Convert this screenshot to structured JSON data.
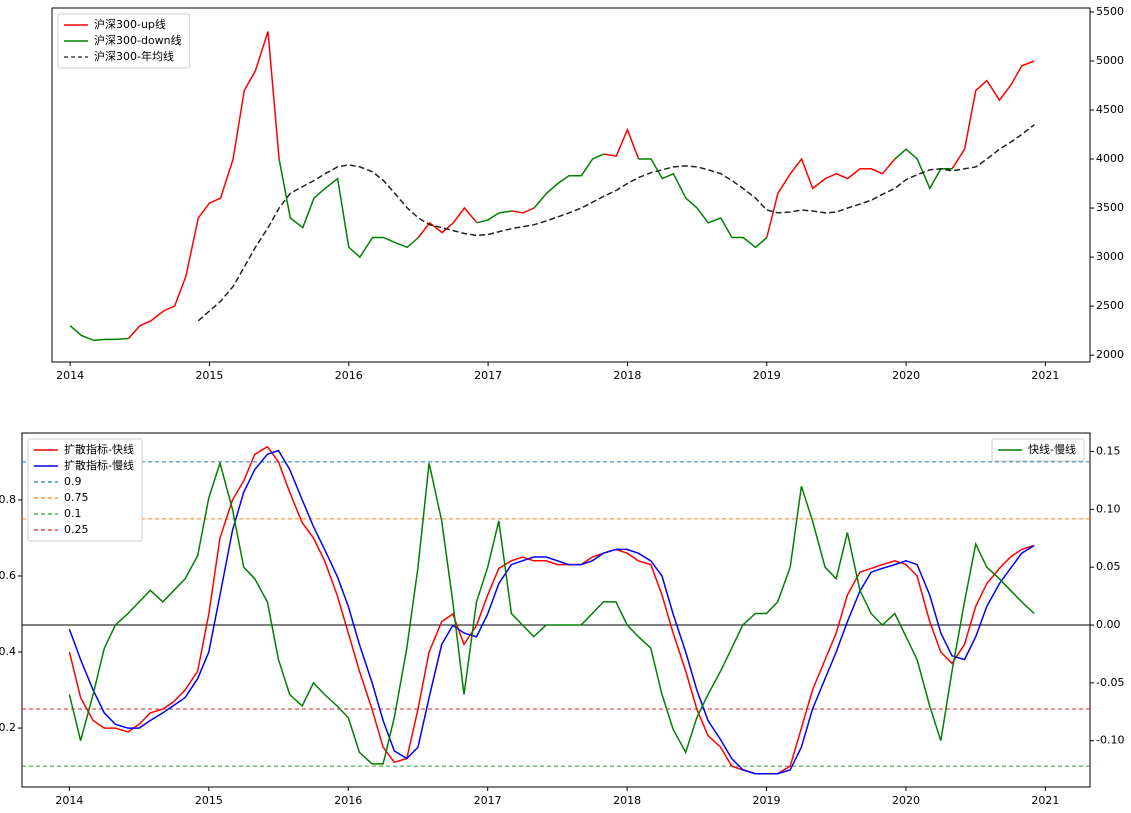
{
  "chart_data": [
    {
      "type": "line",
      "x": [
        2014,
        2014.08,
        2014.17,
        2014.25,
        2014.33,
        2014.42,
        2014.5,
        2014.58,
        2014.67,
        2014.75,
        2014.83,
        2014.92,
        2015,
        2015.08,
        2015.17,
        2015.25,
        2015.33,
        2015.42,
        2015.5,
        2015.58,
        2015.67,
        2015.75,
        2015.83,
        2015.92,
        2016,
        2016.08,
        2016.17,
        2016.25,
        2016.33,
        2016.42,
        2016.5,
        2016.58,
        2016.67,
        2016.75,
        2016.83,
        2016.92,
        2017,
        2017.08,
        2017.17,
        2017.25,
        2017.33,
        2017.42,
        2017.5,
        2017.58,
        2017.67,
        2017.75,
        2017.83,
        2017.92,
        2018,
        2018.08,
        2018.17,
        2018.25,
        2018.33,
        2018.42,
        2018.5,
        2018.58,
        2018.67,
        2018.75,
        2018.83,
        2018.92,
        2019,
        2019.08,
        2019.17,
        2019.25,
        2019.33,
        2019.42,
        2019.5,
        2019.58,
        2019.67,
        2019.75,
        2019.83,
        2019.92,
        2020,
        2020.08,
        2020.17,
        2020.25,
        2020.33,
        2020.42,
        2020.5,
        2020.58,
        2020.67,
        2020.75,
        2020.83,
        2020.92
      ],
      "series": [
        {
          "name": "沪深300-up线",
          "color": "#ff0000",
          "dash": false,
          "values": [
            null,
            null,
            null,
            null,
            null,
            2170,
            2300,
            2350,
            2450,
            2500,
            2800,
            3400,
            3550,
            3600,
            4000,
            4700,
            4900,
            5300,
            4000,
            null,
            null,
            null,
            null,
            null,
            null,
            null,
            null,
            null,
            null,
            null,
            3200,
            3350,
            3250,
            3350,
            3500,
            3350,
            null,
            null,
            3470,
            3450,
            3500,
            null,
            null,
            null,
            null,
            null,
            4050,
            4030,
            4300,
            4000,
            null,
            null,
            null,
            null,
            null,
            null,
            null,
            null,
            null,
            null,
            3200,
            3650,
            3850,
            4000,
            3700,
            3800,
            3850,
            3800,
            3900,
            3900,
            3850,
            4000,
            null,
            null,
            null,
            null,
            3900,
            4100,
            4700,
            4800,
            4600,
            4750,
            4950,
            5000
          ]
        },
        {
          "name": "沪深300-down线",
          "color": "#008000",
          "dash": false,
          "values": [
            2300,
            2200,
            2150,
            2160,
            2160,
            2170,
            null,
            null,
            null,
            null,
            null,
            null,
            null,
            null,
            null,
            null,
            null,
            null,
            4000,
            3400,
            3300,
            3600,
            3700,
            3800,
            3100,
            3000,
            3200,
            3200,
            3150,
            3100,
            3200,
            null,
            null,
            null,
            null,
            3350,
            3380,
            3450,
            3470,
            null,
            3500,
            3650,
            3750,
            3830,
            3830,
            4000,
            4050,
            null,
            null,
            4000,
            4000,
            3800,
            3850,
            3600,
            3500,
            3350,
            3400,
            3200,
            3200,
            3100,
            3200,
            null,
            null,
            null,
            null,
            null,
            null,
            null,
            null,
            null,
            null,
            4000,
            4100,
            4000,
            3700,
            3900,
            3900,
            null,
            null,
            null,
            null,
            null,
            null,
            null
          ]
        },
        {
          "name": "沪深300-年均线",
          "color": "#222222",
          "dash": true,
          "values": [
            null,
            null,
            null,
            null,
            null,
            null,
            null,
            null,
            null,
            null,
            null,
            2350,
            2450,
            2550,
            2700,
            2900,
            3100,
            3300,
            3500,
            3650,
            3720,
            3780,
            3850,
            3920,
            3940,
            3920,
            3870,
            3780,
            3650,
            3500,
            3400,
            3330,
            3300,
            3270,
            3240,
            3220,
            3230,
            3260,
            3290,
            3310,
            3330,
            3370,
            3410,
            3450,
            3500,
            3560,
            3620,
            3680,
            3750,
            3810,
            3860,
            3890,
            3920,
            3930,
            3920,
            3890,
            3850,
            3780,
            3700,
            3600,
            3480,
            3450,
            3460,
            3480,
            3470,
            3450,
            3460,
            3500,
            3540,
            3580,
            3640,
            3700,
            3790,
            3840,
            3890,
            3900,
            3880,
            3900,
            3920,
            4000,
            4100,
            4170,
            4250,
            4350
          ]
        }
      ],
      "xlim": [
        2013.87,
        2021.32
      ],
      "xticks": [
        2014,
        2015,
        2016,
        2017,
        2018,
        2019,
        2020,
        2021
      ],
      "ylim": [
        1930,
        5540
      ],
      "yticks": [
        2000,
        2500,
        3000,
        3500,
        4000,
        4500,
        5000,
        5500
      ],
      "y_axis_side": "right",
      "legend": "upper left"
    },
    {
      "type": "line",
      "x": [
        2014,
        2014.08,
        2014.17,
        2014.25,
        2014.33,
        2014.42,
        2014.5,
        2014.58,
        2014.67,
        2014.75,
        2014.83,
        2014.92,
        2015,
        2015.08,
        2015.17,
        2015.25,
        2015.33,
        2015.42,
        2015.5,
        2015.58,
        2015.67,
        2015.75,
        2015.83,
        2015.92,
        2016,
        2016.08,
        2016.17,
        2016.25,
        2016.33,
        2016.42,
        2016.5,
        2016.58,
        2016.67,
        2016.75,
        2016.83,
        2016.92,
        2017,
        2017.08,
        2017.17,
        2017.25,
        2017.33,
        2017.42,
        2017.5,
        2017.58,
        2017.67,
        2017.75,
        2017.83,
        2017.92,
        2018,
        2018.08,
        2018.17,
        2018.25,
        2018.33,
        2018.42,
        2018.5,
        2018.58,
        2018.67,
        2018.75,
        2018.83,
        2018.92,
        2019,
        2019.08,
        2019.17,
        2019.25,
        2019.33,
        2019.42,
        2019.5,
        2019.58,
        2019.67,
        2019.75,
        2019.83,
        2019.92,
        2020,
        2020.08,
        2020.17,
        2020.25,
        2020.33,
        2020.42,
        2020.5,
        2020.58,
        2020.67,
        2020.75,
        2020.83,
        2020.92
      ],
      "series": [
        {
          "name": "扩散指标-快线",
          "color": "#ff0000",
          "dash": false,
          "values": [
            0.4,
            0.28,
            0.22,
            0.2,
            0.2,
            0.19,
            0.21,
            0.24,
            0.25,
            0.27,
            0.3,
            0.35,
            0.5,
            0.7,
            0.8,
            0.85,
            0.92,
            0.94,
            0.9,
            0.82,
            0.74,
            0.7,
            0.64,
            0.55,
            0.45,
            0.35,
            0.25,
            0.15,
            0.11,
            0.12,
            0.25,
            0.4,
            0.48,
            0.5,
            0.42,
            0.47,
            0.55,
            0.62,
            0.64,
            0.65,
            0.64,
            0.64,
            0.63,
            0.63,
            0.63,
            0.65,
            0.66,
            0.67,
            0.66,
            0.64,
            0.63,
            0.55,
            0.45,
            0.35,
            0.25,
            0.18,
            0.15,
            0.1,
            0.09,
            0.08,
            0.08,
            0.08,
            0.1,
            0.2,
            0.3,
            0.38,
            0.45,
            0.55,
            0.61,
            0.62,
            0.63,
            0.64,
            0.63,
            0.6,
            0.48,
            0.4,
            0.37,
            0.42,
            0.52,
            0.58,
            0.62,
            0.65,
            0.67,
            0.68
          ]
        },
        {
          "name": "扩散指标-慢线",
          "color": "#0000ff",
          "dash": false,
          "values": [
            0.46,
            0.38,
            0.3,
            0.24,
            0.21,
            0.2,
            0.2,
            0.22,
            0.24,
            0.26,
            0.28,
            0.33,
            0.4,
            0.55,
            0.72,
            0.82,
            0.88,
            0.92,
            0.93,
            0.88,
            0.8,
            0.73,
            0.67,
            0.6,
            0.52,
            0.42,
            0.32,
            0.22,
            0.14,
            0.12,
            0.15,
            0.28,
            0.42,
            0.47,
            0.45,
            0.44,
            0.5,
            0.58,
            0.63,
            0.64,
            0.65,
            0.65,
            0.64,
            0.63,
            0.63,
            0.64,
            0.66,
            0.67,
            0.67,
            0.66,
            0.64,
            0.6,
            0.5,
            0.4,
            0.3,
            0.22,
            0.17,
            0.12,
            0.09,
            0.08,
            0.08,
            0.08,
            0.09,
            0.15,
            0.25,
            0.33,
            0.4,
            0.48,
            0.56,
            0.61,
            0.62,
            0.63,
            0.64,
            0.63,
            0.55,
            0.45,
            0.39,
            0.38,
            0.44,
            0.52,
            0.58,
            0.62,
            0.66,
            0.68
          ]
        },
        {
          "name": "快线-慢线",
          "color": "#008000",
          "dash": false,
          "axis": "y2",
          "values": [
            -0.06,
            -0.1,
            -0.06,
            -0.02,
            0.0,
            0.01,
            0.02,
            0.03,
            0.02,
            0.03,
            0.04,
            0.06,
            0.11,
            0.14,
            0.1,
            0.05,
            0.04,
            0.02,
            -0.03,
            -0.06,
            -0.07,
            -0.05,
            -0.06,
            -0.07,
            -0.08,
            -0.11,
            -0.12,
            -0.12,
            -0.08,
            -0.02,
            0.05,
            0.14,
            0.09,
            0.02,
            -0.06,
            0.02,
            0.05,
            0.09,
            0.01,
            0.0,
            -0.01,
            0.0,
            0.0,
            0.0,
            0.0,
            0.01,
            0.02,
            0.02,
            0.0,
            -0.01,
            -0.02,
            -0.06,
            -0.09,
            -0.11,
            -0.08,
            -0.06,
            -0.04,
            -0.02,
            0.0,
            0.01,
            0.01,
            0.02,
            0.05,
            0.12,
            0.09,
            0.05,
            0.04,
            0.08,
            0.03,
            0.01,
            0.0,
            0.01,
            -0.01,
            -0.03,
            -0.07,
            -0.1,
            -0.04,
            0.02,
            0.07,
            0.05,
            0.04,
            0.03,
            0.02,
            0.01
          ]
        }
      ],
      "hlines": [
        {
          "name": "0.9",
          "value": 0.9,
          "color": "#1f77b4",
          "dash": true
        },
        {
          "name": "0.75",
          "value": 0.75,
          "color": "#ff7f0e",
          "dash": true
        },
        {
          "name": "0.1",
          "value": 0.1,
          "color": "#2ca02c",
          "dash": true
        },
        {
          "name": "0.25",
          "value": 0.25,
          "color": "#d62728",
          "dash": true
        },
        {
          "value": 0,
          "axis": "y2",
          "color": "#000000",
          "dash": false
        }
      ],
      "xlim": [
        2013.66,
        2021.32
      ],
      "xticks": [
        2014,
        2015,
        2016,
        2017,
        2018,
        2019,
        2020,
        2021
      ],
      "ylim": [
        0.045,
        0.976
      ],
      "yticks": [
        0.2,
        0.4,
        0.6,
        0.8
      ],
      "y2lim": [
        -0.14,
        0.166
      ],
      "y2ticks": [
        {
          "value": -0.1,
          "label": "-0.10"
        },
        -0.05,
        {
          "value": 0,
          "label": "0.00"
        },
        0.05,
        {
          "value": 0.1,
          "label": "0.10"
        },
        0.15
      ],
      "y_axis_side": "left",
      "legend": "upper left",
      "legend_y2": "upper right"
    }
  ]
}
